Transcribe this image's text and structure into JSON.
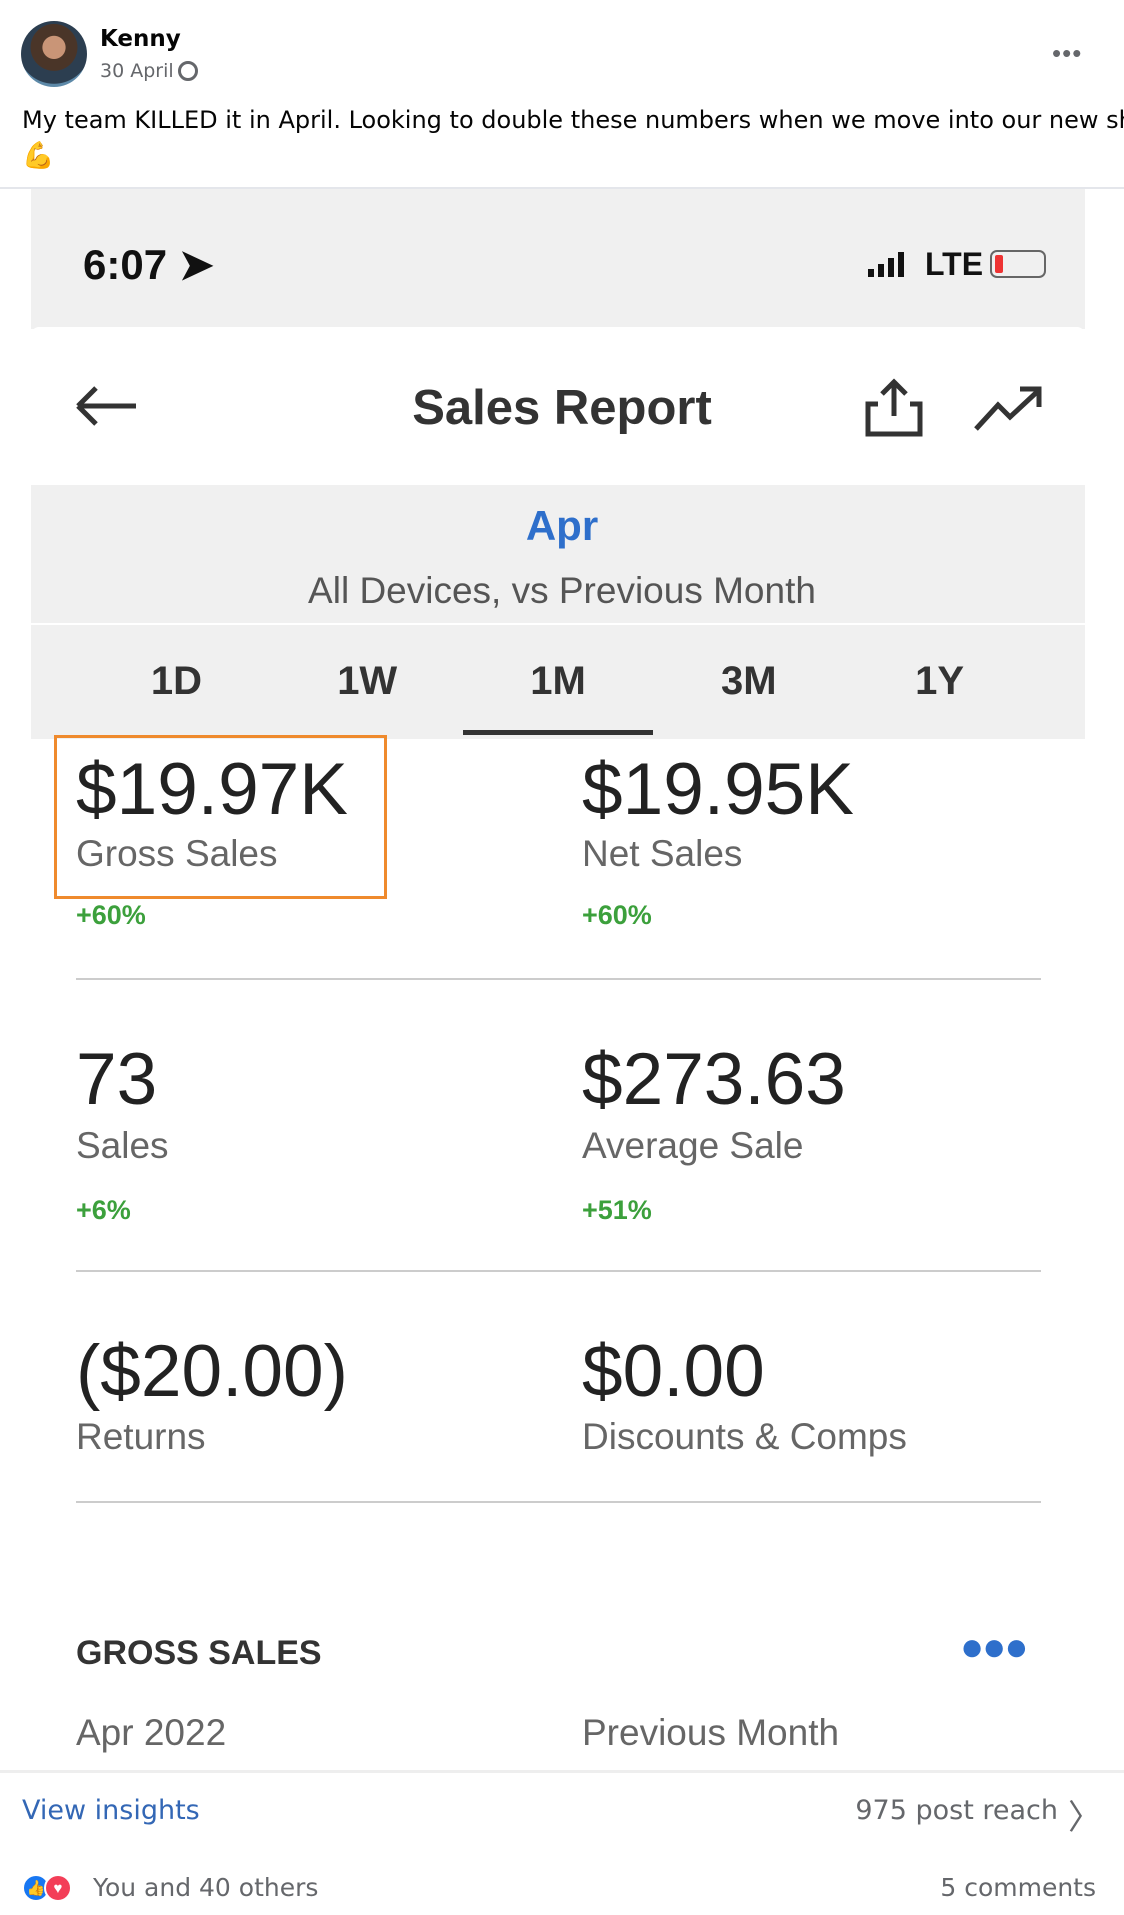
{
  "post": {
    "author": "Kenny",
    "date": "30 April",
    "text": "My team KILLED it in April. Looking to double these numbers when we move into our new shop.",
    "emoji": "💪"
  },
  "phone": {
    "time": "6:07",
    "network": "LTE",
    "battery_color": "#e33333"
  },
  "report": {
    "title": "Sales Report",
    "period": "Apr",
    "subtitle": "All Devices, vs Previous Month",
    "tabs": [
      {
        "label": "1D"
      },
      {
        "label": "1W"
      },
      {
        "label": "1M",
        "active": true
      },
      {
        "label": "3M"
      },
      {
        "label": "1Y"
      }
    ],
    "metrics": [
      {
        "value": "$19.97K",
        "label": "Gross Sales",
        "change": "+60%",
        "highlighted": true
      },
      {
        "value": "$19.95K",
        "label": "Net Sales",
        "change": "+60%"
      },
      {
        "value": "73",
        "label": "Sales",
        "change": "+6%"
      },
      {
        "value": "$273.63",
        "label": "Average Sale",
        "change": "+51%"
      },
      {
        "value": "($20.00)",
        "label": "Returns"
      },
      {
        "value": "$0.00",
        "label": "Discounts & Comps"
      }
    ],
    "section_title": "GROSS SALES",
    "section_col1": "Apr 2022",
    "section_col2": "Previous Month",
    "accent": "#2e6fcb",
    "positive_color": "#3ca03c",
    "highlight_color": "#ef8a2d"
  },
  "footer": {
    "insights": "View insights",
    "reach": "975 post reach",
    "reactions": "You and 40 others",
    "comments": "5 comments"
  }
}
